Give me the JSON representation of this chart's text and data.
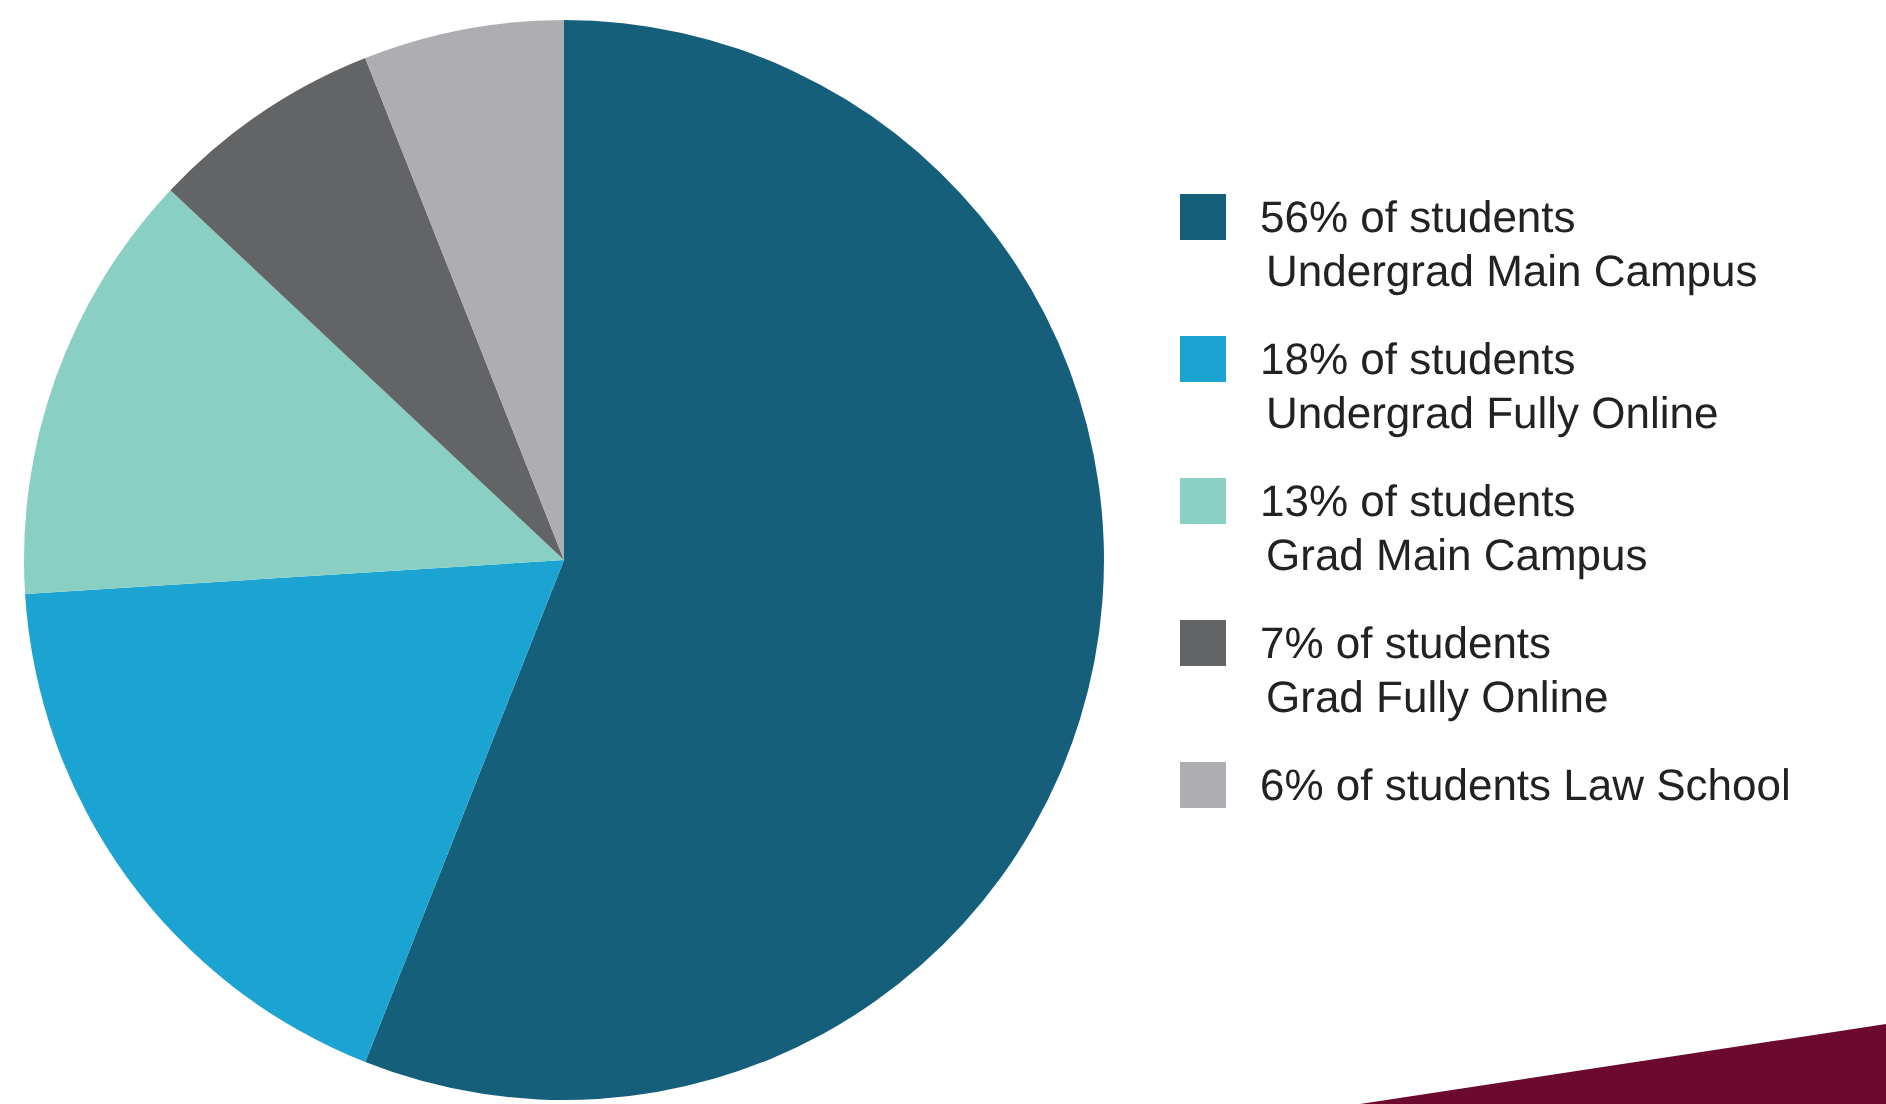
{
  "chart_data": {
    "type": "pie",
    "categories": [
      "56% of students\nUndergrad Main Campus",
      "18% of students\nUndergrad Fully Online",
      "13% of students\nGrad Main Campus",
      "7% of students\nGrad Fully Online",
      "6% of students Law School"
    ],
    "values": [
      56,
      18,
      13,
      7,
      6
    ],
    "colors": [
      "#165f7b",
      "#1ba4d1",
      "#8acfc4",
      "#636466",
      "#aeaeb2"
    ],
    "legend": "right"
  }
}
